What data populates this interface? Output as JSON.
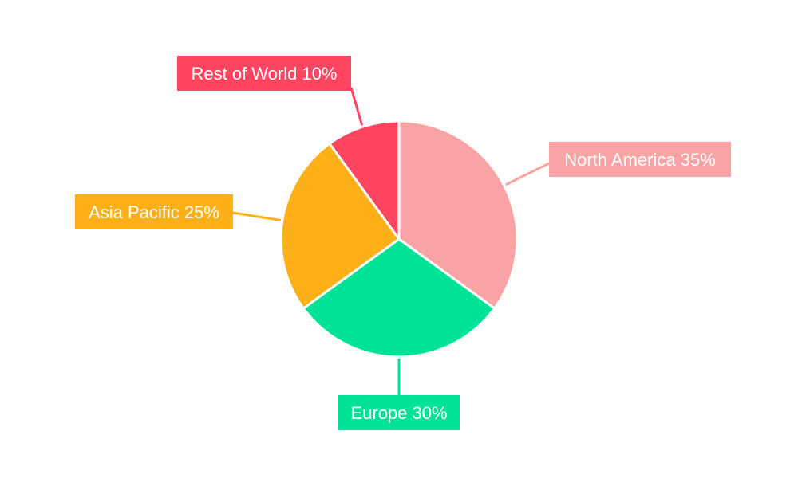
{
  "chart_data": {
    "type": "pie",
    "title": "",
    "categories": [
      "North America",
      "Europe",
      "Asia Pacific",
      "Rest of World"
    ],
    "values": [
      35,
      30,
      25,
      10
    ],
    "unit": "%",
    "colors": [
      "#F9A3A4",
      "#00E396",
      "#FEB019",
      "#FF4560"
    ],
    "labels": [
      "North America 35%",
      "Europe 30%",
      "Asia Pacific 25%",
      "Rest of World 10%"
    ],
    "start_angle": "top",
    "direction": "clockwise",
    "legend": "none"
  }
}
